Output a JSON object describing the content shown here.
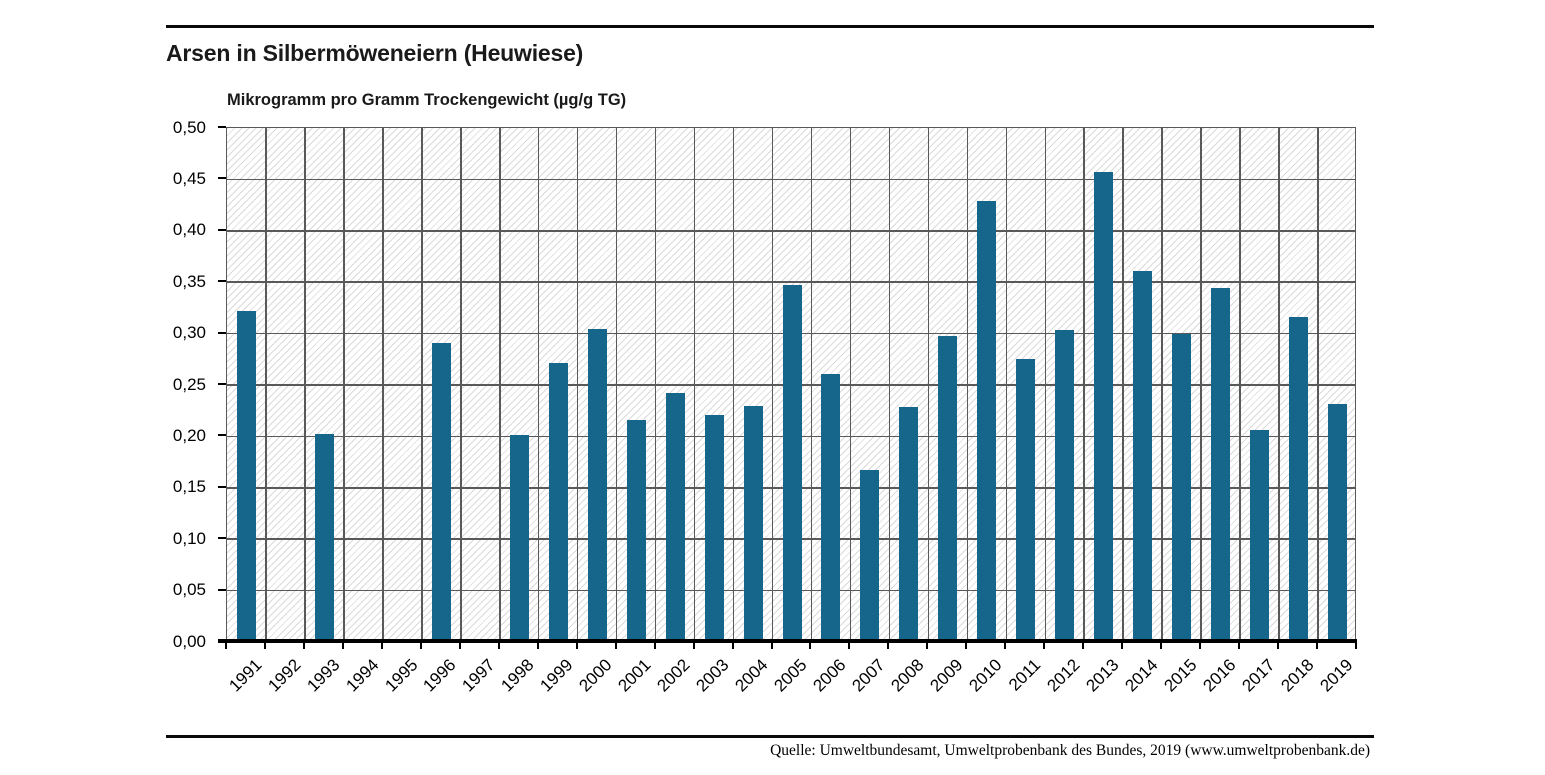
{
  "page": {
    "source_note": "Quelle: Umweltbundesamt, Umweltprobenbank des Bundes, 2019 (www.umweltprobenbank.de)"
  },
  "chart_data": {
    "type": "bar",
    "title": "Arsen in Silbermöweneiern (Heuwiese)",
    "ylabel": "Mikrogramm pro Gramm Trockengewicht (µg/g TG)",
    "xlabel": "",
    "categories": [
      "1991",
      "1992",
      "1993",
      "1994",
      "1995",
      "1996",
      "1997",
      "1998",
      "1999",
      "2000",
      "2001",
      "2002",
      "2003",
      "2004",
      "2005",
      "2006",
      "2007",
      "2008",
      "2009",
      "2010",
      "2011",
      "2012",
      "2013",
      "2014",
      "2015",
      "2016",
      "2017",
      "2018",
      "2019"
    ],
    "values": [
      0.32,
      null,
      0.2,
      null,
      null,
      0.289,
      null,
      0.199,
      0.269,
      0.303,
      0.214,
      0.24,
      0.219,
      0.228,
      0.345,
      0.259,
      0.165,
      0.227,
      0.296,
      0.427,
      0.273,
      0.302,
      0.455,
      0.359,
      0.298,
      0.342,
      0.204,
      0.314,
      0.23
    ],
    "ylim": [
      0,
      0.5
    ],
    "ytick_step": 0.05,
    "ytick_labels": [
      "0,00",
      "0,05",
      "0,10",
      "0,15",
      "0,20",
      "0,25",
      "0,30",
      "0,35",
      "0,40",
      "0,45",
      "0,50"
    ],
    "grid": true,
    "legend_position": "none",
    "bar_color": "#16658a",
    "gridline_color": "#595959",
    "hatch_background": true
  }
}
